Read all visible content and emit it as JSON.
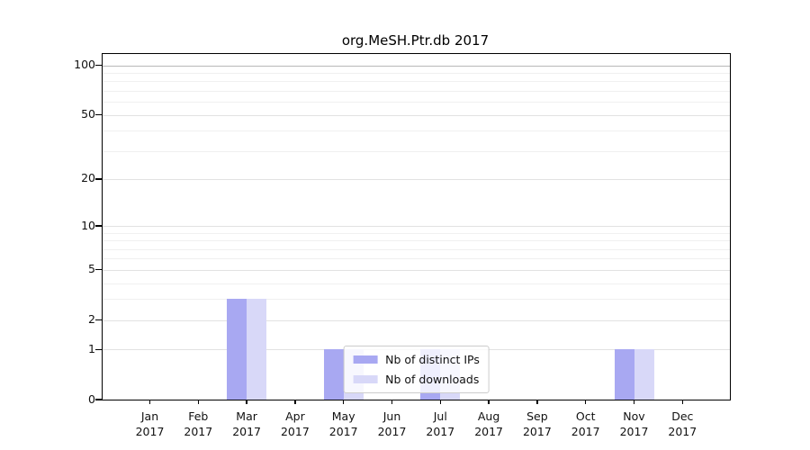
{
  "chart_data": {
    "type": "bar",
    "title": "org.MeSH.Ptr.db 2017",
    "xlabel": "",
    "ylabel": "",
    "categories": [
      "Jan 2017",
      "Feb 2017",
      "Mar 2017",
      "Apr 2017",
      "May 2017",
      "Jun 2017",
      "Jul 2017",
      "Aug 2017",
      "Sep 2017",
      "Oct 2017",
      "Nov 2017",
      "Dec 2017"
    ],
    "series": [
      {
        "name": "Nb of distinct IPs",
        "color": "#a8a8f2",
        "values": [
          0,
          0,
          3,
          0,
          1,
          0,
          1,
          0,
          0,
          0,
          1,
          0
        ]
      },
      {
        "name": "Nb of downloads",
        "color": "#d8d8f8",
        "values": [
          0,
          0,
          3,
          0,
          1,
          0,
          1,
          0,
          0,
          0,
          1,
          0
        ]
      }
    ],
    "yscale": "log1p",
    "yticks": [
      0,
      1,
      2,
      5,
      10,
      20,
      50,
      100
    ],
    "minor_yticks": [
      3,
      4,
      6,
      7,
      8,
      9,
      30,
      40,
      60,
      70,
      80,
      90
    ],
    "ylim": [
      0,
      117
    ],
    "grid": "horizontal",
    "legend_position": "lower center"
  }
}
